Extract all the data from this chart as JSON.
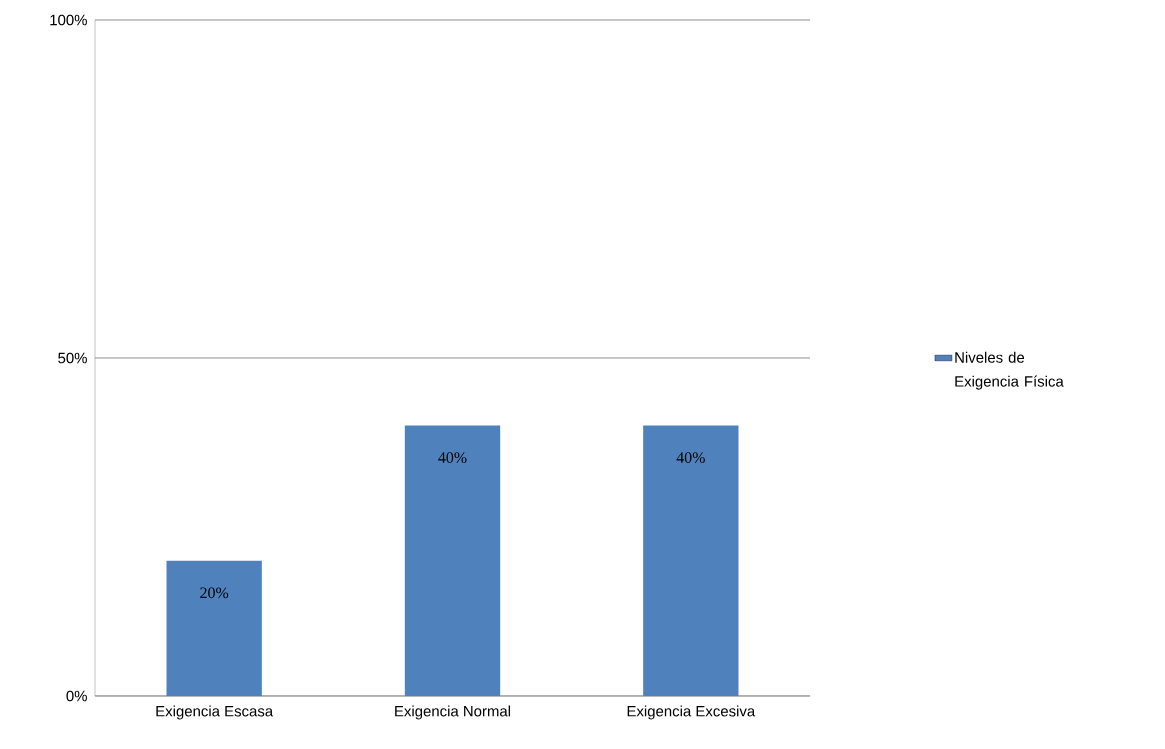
{
  "chart_data": {
    "type": "bar",
    "categories": [
      "Exigencia Escasa",
      "Exigencia Normal",
      "Exigencia Excesiva"
    ],
    "series": [
      {
        "name": "Niveles de Exigencia Física",
        "color": "#4f81bd",
        "values": [
          20,
          40,
          40
        ],
        "value_labels": [
          "20%",
          "40%",
          "40%"
        ]
      }
    ],
    "ylim": [
      0,
      100
    ],
    "yticks": [
      {
        "value": 0,
        "label": "0%"
      },
      {
        "value": 50,
        "label": "50%"
      },
      {
        "value": 100,
        "label": "100%"
      }
    ],
    "grid": "y",
    "legend": "right"
  }
}
